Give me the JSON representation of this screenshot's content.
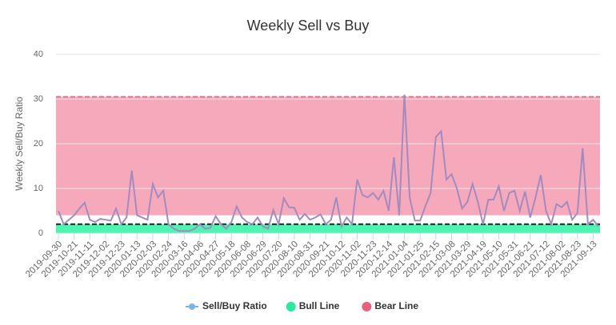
{
  "chart_data": {
    "type": "line",
    "title": "Weekly Sell vs Buy",
    "y_axis_title": "Weekly Sell/Buy Ratio",
    "ylim": [
      0,
      40
    ],
    "yticks": [
      0,
      10,
      20,
      30,
      40
    ],
    "grid": true,
    "legend": "bottom",
    "categories": [
      "2019-09-30",
      null,
      null,
      "2019-10-21",
      null,
      null,
      "2019-11-11",
      null,
      null,
      "2019-12-02",
      null,
      null,
      "2019-12-23",
      null,
      null,
      "2020-01-13",
      null,
      null,
      "2020-02-03",
      null,
      null,
      "2020-02-24",
      null,
      null,
      "2020-03-16",
      null,
      null,
      "2020-04-06",
      null,
      null,
      "2020-04-27",
      null,
      null,
      "2020-05-18",
      null,
      null,
      "2020-06-08",
      null,
      null,
      "2020-06-29",
      null,
      null,
      "2020-07-20",
      null,
      null,
      "2020-08-10",
      null,
      null,
      "2020-08-31",
      null,
      null,
      "2020-09-21",
      null,
      null,
      "2020-10-12",
      null,
      null,
      "2020-11-02",
      null,
      null,
      "2020-11-23",
      null,
      null,
      "2020-12-14",
      null,
      null,
      "2021-01-04",
      null,
      null,
      "2021-01-25",
      null,
      null,
      "2021-02-15",
      null,
      null,
      "2021-03-08",
      null,
      null,
      "2021-03-29",
      null,
      null,
      "2021-04-19",
      null,
      null,
      "2021-05-10",
      null,
      null,
      "2021-05-31",
      null,
      null,
      "2021-06-21",
      null,
      null,
      "2021-07-12",
      null,
      null,
      "2021-08-02",
      null,
      null,
      "2021-08-23",
      null,
      null,
      "2021-09-13",
      null
    ],
    "series": [
      {
        "name": "Sell/Buy Ratio",
        "color": "#7cb5ec",
        "line_color": "#a08cc0",
        "values": [
          5,
          2,
          3,
          4,
          5.5,
          6.8,
          3,
          2.5,
          3.2,
          3,
          2.8,
          5.5,
          2,
          3.5,
          14,
          4,
          3.5,
          3,
          11,
          8,
          9.5,
          2,
          1,
          0.5,
          0.5,
          0.5,
          1,
          2,
          1,
          1.2,
          3.8,
          2,
          1,
          2.5,
          6,
          3.5,
          2.5,
          2,
          3.5,
          1.5,
          1,
          5.2,
          2,
          7.8,
          5.8,
          5.7,
          3,
          4.3,
          3,
          3.5,
          4.2,
          2,
          3,
          8,
          1.5,
          3.5,
          2,
          12,
          8.5,
          8,
          9,
          7.5,
          9.5,
          5,
          17,
          4,
          31,
          8,
          2.8,
          2.8,
          6,
          9,
          21.5,
          22.8,
          12,
          13.2,
          10,
          5.5,
          7,
          11,
          7,
          2,
          7.5,
          7.5,
          10.5,
          5,
          9,
          9.5,
          5,
          9.3,
          3.5,
          8,
          13,
          5,
          2,
          6.5,
          5.8,
          7,
          3,
          4.5,
          19,
          2,
          3,
          1.5
        ]
      }
    ],
    "bands": [
      {
        "name": "Bull Line",
        "from": 0,
        "to": 2,
        "color": "#4cf5b0",
        "marker_color": "#2de89f",
        "line_color": "#222222"
      },
      {
        "name": "Bear Line",
        "from": 4,
        "to": 30.5,
        "color": "#f7a9bc",
        "marker_color": "#e8607f",
        "line_color": "#e5768f"
      }
    ]
  }
}
